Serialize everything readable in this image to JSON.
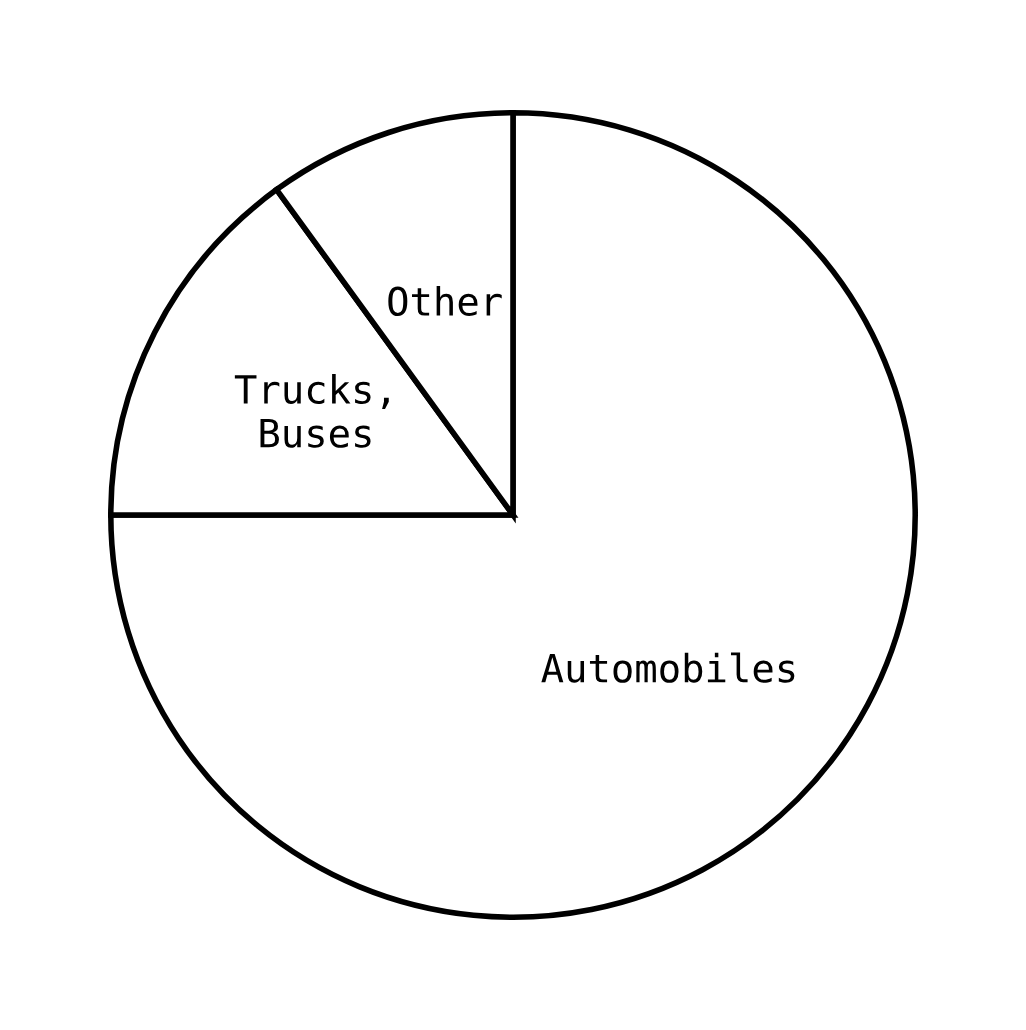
{
  "chart_data": {
    "type": "pie",
    "categories": [
      "Automobiles",
      "Trucks, Buses",
      "Other"
    ],
    "values": [
      75,
      15,
      10
    ],
    "colors": [
      "#ffffff",
      "#ffffff",
      "#ffffff"
    ]
  }
}
